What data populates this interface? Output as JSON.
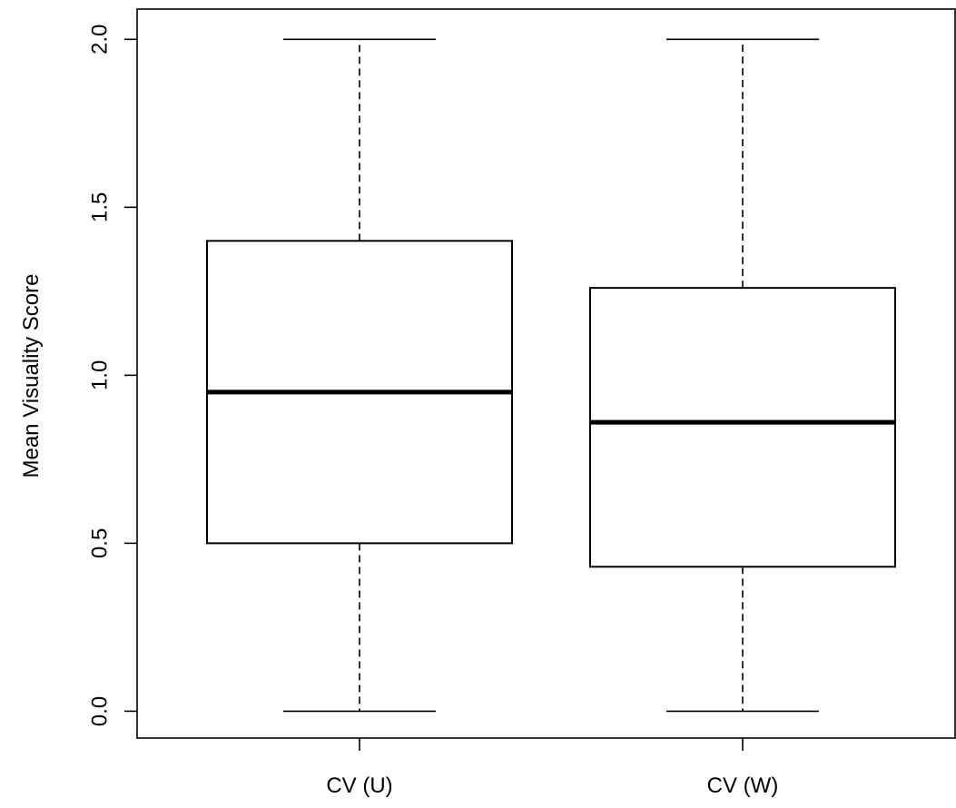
{
  "chart_data": {
    "type": "boxplot",
    "title": "",
    "xlabel": "",
    "ylabel": "Mean Visuality Score",
    "ylim": [
      -0.08,
      2.09
    ],
    "y_ticks": [
      0.0,
      0.5,
      1.0,
      1.5,
      2.0
    ],
    "y_tick_labels": [
      "0.0",
      "0.5",
      "1.0",
      "1.5",
      "2.0"
    ],
    "grid": false,
    "categories": [
      "CV (U)",
      "CV (W)"
    ],
    "boxes": [
      {
        "category": "CV (U)",
        "min": 0.0,
        "q1": 0.5,
        "median": 0.95,
        "q3": 1.4,
        "max": 2.0
      },
      {
        "category": "CV (W)",
        "min": 0.0,
        "q1": 0.43,
        "median": 0.86,
        "q3": 1.26,
        "max": 2.0
      }
    ]
  }
}
